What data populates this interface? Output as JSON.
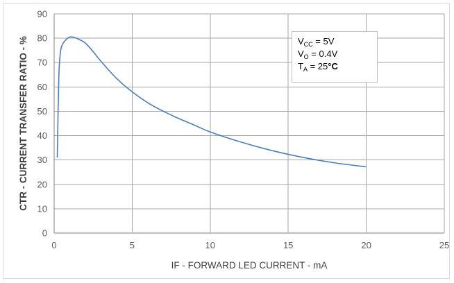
{
  "chart_data": {
    "type": "line",
    "title": "",
    "xlabel": "IF - FORWARD LED CURRENT - mA",
    "ylabel": "CTR - CURRENT TRANSFER RATIO - %",
    "xlim": [
      0,
      25
    ],
    "ylim": [
      0,
      90
    ],
    "xticks": [
      "0",
      "5",
      "10",
      "15",
      "20",
      "25"
    ],
    "yticks": [
      "0",
      "10",
      "20",
      "30",
      "40",
      "50",
      "60",
      "70",
      "80",
      "90"
    ],
    "grid": true,
    "line_color": "#4a7ebb",
    "series": [
      {
        "x": [
          0.2,
          0.3,
          0.4,
          0.5,
          0.7,
          1.0,
          1.3,
          1.6,
          2.0,
          2.5,
          3.0,
          4.0,
          5.0,
          6.0,
          7.0,
          8.0,
          9.0,
          10.0,
          12.0,
          14.0,
          16.0,
          18.0,
          20.0
        ],
        "y": [
          31,
          64,
          74,
          77,
          79,
          80.5,
          80.3,
          79.5,
          78,
          74.5,
          70.5,
          63.5,
          58,
          53.5,
          50,
          47,
          44.3,
          41.5,
          37.3,
          33.8,
          31.0,
          28.8,
          27.2
        ]
      }
    ],
    "conditions": {
      "line1": {
        "symbol": "V",
        "sub": "CC",
        "value": " = 5V"
      },
      "line2": {
        "symbol": "V",
        "sub": "O",
        "value": " = 0.4V"
      },
      "line3": {
        "symbol": "T",
        "sub": "A",
        "value": " = 25",
        "unit": "°C"
      }
    }
  }
}
